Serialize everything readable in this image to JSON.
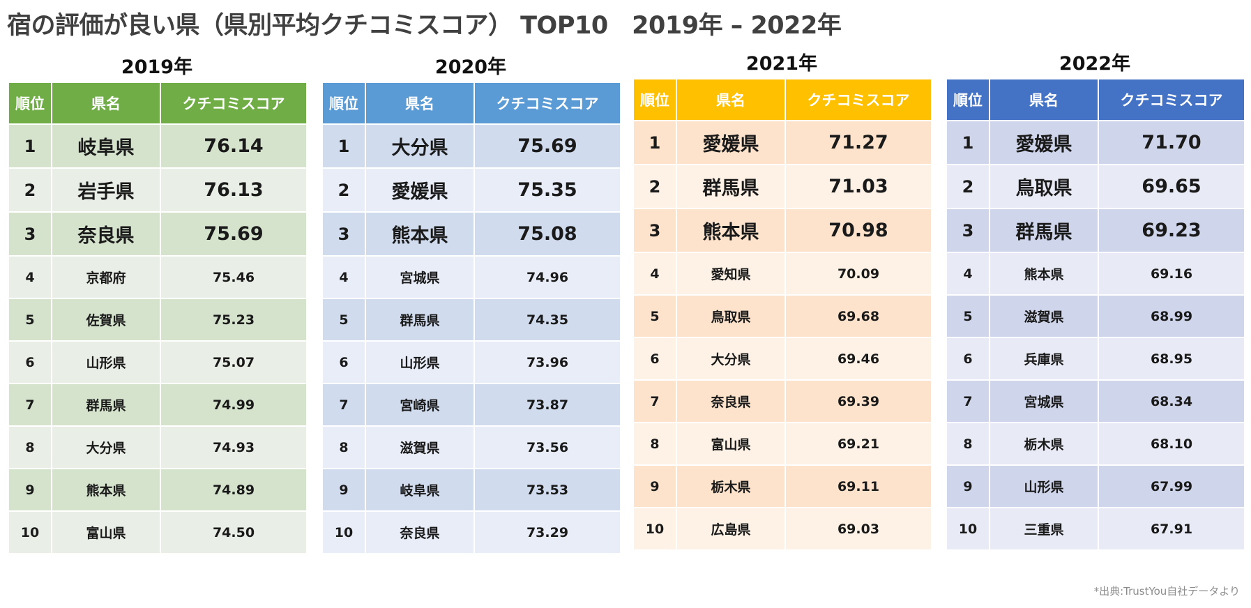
{
  "title": "宿の評価が良い県（県別平均クチコミスコア） TOP10　2019年 – 2022年",
  "headers": {
    "rank": "順位",
    "pref": "県名",
    "score": "クチコミスコア"
  },
  "tables": [
    {
      "year": "2019年",
      "colors": {
        "header": "#70ad47",
        "dark": "#d5e3cd",
        "light": "#e9efe6"
      },
      "rows": [
        {
          "rank": "1",
          "pref": "岐阜県",
          "score": "76.14"
        },
        {
          "rank": "2",
          "pref": "岩手県",
          "score": "76.13"
        },
        {
          "rank": "3",
          "pref": "奈良県",
          "score": "75.69"
        },
        {
          "rank": "4",
          "pref": "京都府",
          "score": "75.46"
        },
        {
          "rank": "5",
          "pref": "佐賀県",
          "score": "75.23"
        },
        {
          "rank": "6",
          "pref": "山形県",
          "score": "75.07"
        },
        {
          "rank": "7",
          "pref": "群馬県",
          "score": "74.99"
        },
        {
          "rank": "8",
          "pref": "大分県",
          "score": "74.93"
        },
        {
          "rank": "9",
          "pref": "熊本県",
          "score": "74.89"
        },
        {
          "rank": "10",
          "pref": "富山県",
          "score": "74.50"
        }
      ]
    },
    {
      "year": "2020年",
      "colors": {
        "header": "#5b9bd5",
        "dark": "#d0dcee",
        "light": "#e8edf7"
      },
      "rows": [
        {
          "rank": "1",
          "pref": "大分県",
          "score": "75.69"
        },
        {
          "rank": "2",
          "pref": "愛媛県",
          "score": "75.35"
        },
        {
          "rank": "3",
          "pref": "熊本県",
          "score": "75.08"
        },
        {
          "rank": "4",
          "pref": "宮城県",
          "score": "74.96"
        },
        {
          "rank": "5",
          "pref": "群馬県",
          "score": "74.35"
        },
        {
          "rank": "6",
          "pref": "山形県",
          "score": "73.96"
        },
        {
          "rank": "7",
          "pref": "宮崎県",
          "score": "73.87"
        },
        {
          "rank": "8",
          "pref": "滋賀県",
          "score": "73.56"
        },
        {
          "rank": "9",
          "pref": "岐阜県",
          "score": "73.53"
        },
        {
          "rank": "10",
          "pref": "奈良県",
          "score": "73.29"
        }
      ]
    },
    {
      "year": "2021年",
      "colors": {
        "header": "#ffc000",
        "dark": "#fde3cc",
        "light": "#fef2e6"
      },
      "rows": [
        {
          "rank": "1",
          "pref": "愛媛県",
          "score": "71.27"
        },
        {
          "rank": "2",
          "pref": "群馬県",
          "score": "71.03"
        },
        {
          "rank": "3",
          "pref": "熊本県",
          "score": "70.98"
        },
        {
          "rank": "4",
          "pref": "愛知県",
          "score": "70.09"
        },
        {
          "rank": "5",
          "pref": "鳥取県",
          "score": "69.68"
        },
        {
          "rank": "6",
          "pref": "大分県",
          "score": "69.46"
        },
        {
          "rank": "7",
          "pref": "奈良県",
          "score": "69.39"
        },
        {
          "rank": "8",
          "pref": "富山県",
          "score": "69.21"
        },
        {
          "rank": "9",
          "pref": "栃木県",
          "score": "69.11"
        },
        {
          "rank": "10",
          "pref": "広島県",
          "score": "69.03"
        }
      ]
    },
    {
      "year": "2022年",
      "colors": {
        "header": "#4472c4",
        "dark": "#cfd5ea",
        "light": "#e8ebf5"
      },
      "rows": [
        {
          "rank": "1",
          "pref": "愛媛県",
          "score": "71.70"
        },
        {
          "rank": "2",
          "pref": "鳥取県",
          "score": "69.65"
        },
        {
          "rank": "3",
          "pref": "群馬県",
          "score": "69.23"
        },
        {
          "rank": "4",
          "pref": "熊本県",
          "score": "69.16"
        },
        {
          "rank": "5",
          "pref": "滋賀県",
          "score": "68.99"
        },
        {
          "rank": "6",
          "pref": "兵庫県",
          "score": "68.95"
        },
        {
          "rank": "7",
          "pref": "宮城県",
          "score": "68.34"
        },
        {
          "rank": "8",
          "pref": "栃木県",
          "score": "68.10"
        },
        {
          "rank": "9",
          "pref": "山形県",
          "score": "67.99"
        },
        {
          "rank": "10",
          "pref": "三重県",
          "score": "67.91"
        }
      ]
    }
  ],
  "source": "*出典:TrustYou自社データより"
}
